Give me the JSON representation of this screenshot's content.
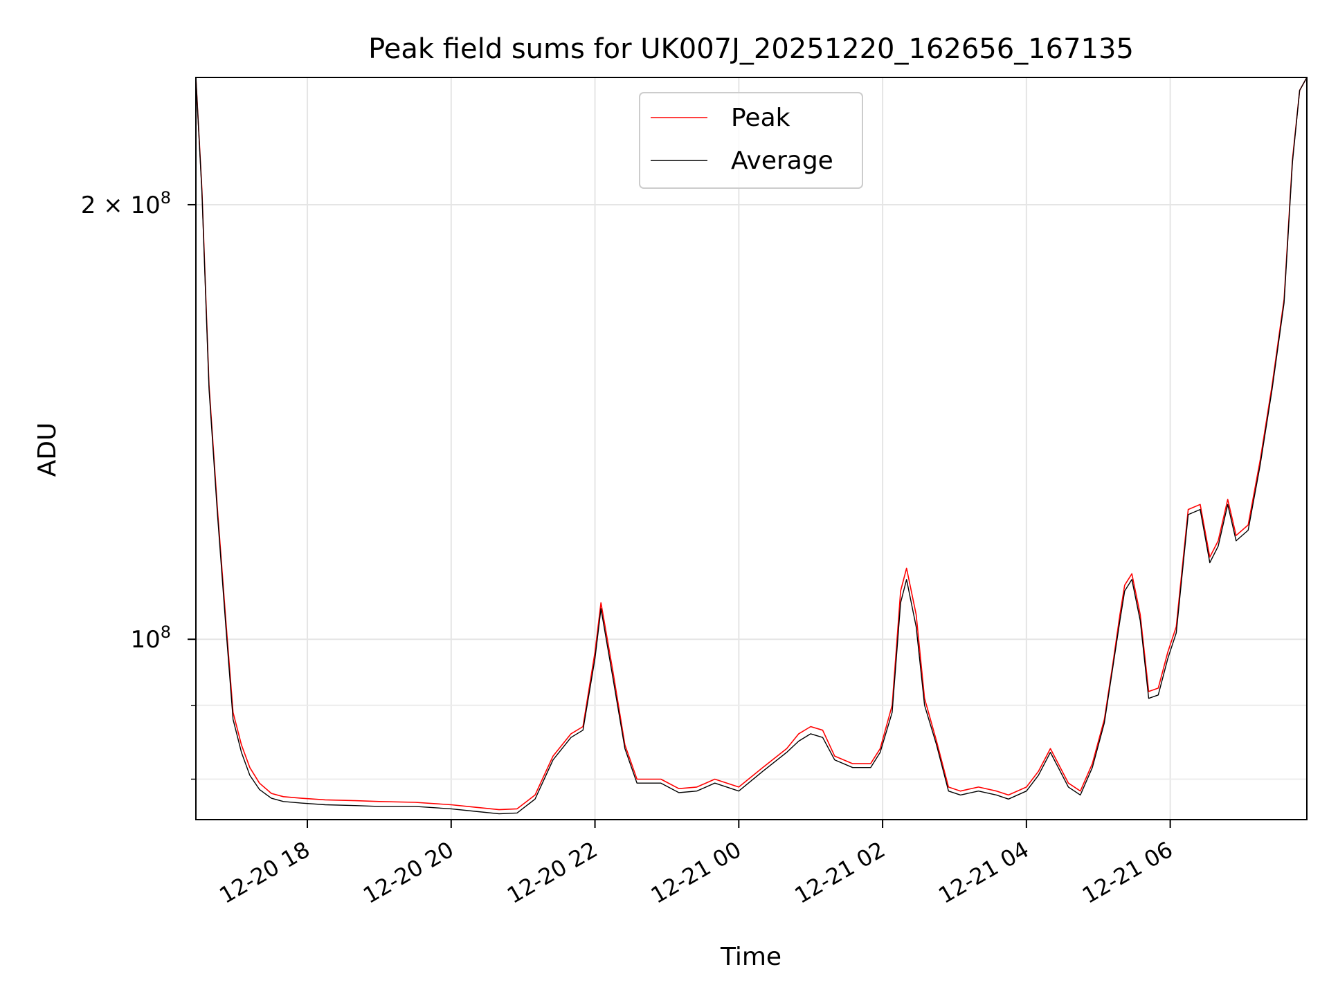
{
  "chart_data": {
    "type": "line",
    "title": "Peak field sums for UK007J_20251220_162656_167135",
    "xlabel": "Time",
    "ylabel": "ADU",
    "y_scale": "log",
    "ylim": [
      75000000,
      245000000
    ],
    "xlim": [
      "2025-12-20 16:27",
      "2025-12-21 07:54"
    ],
    "grid": true,
    "legend_position": "upper center",
    "x_ticks": [
      {
        "t": "2025-12-20 18:00",
        "label": "12-20 18"
      },
      {
        "t": "2025-12-20 20:00",
        "label": "12-20 20"
      },
      {
        "t": "2025-12-20 22:00",
        "label": "12-20 22"
      },
      {
        "t": "2025-12-21 00:00",
        "label": "12-21 00"
      },
      {
        "t": "2025-12-21 02:00",
        "label": "12-21 02"
      },
      {
        "t": "2025-12-21 04:00",
        "label": "12-21 04"
      },
      {
        "t": "2025-12-21 06:00",
        "label": "12-21 06"
      }
    ],
    "y_ticks": [
      {
        "v": 100000000,
        "label": "10",
        "sup": "8",
        "prefix": ""
      },
      {
        "v": 200000000,
        "label": "2 × 10",
        "sup": "8",
        "prefix": ""
      }
    ],
    "y_minor_ticks": [
      80000000,
      90000000
    ],
    "series": [
      {
        "name": "Peak",
        "color": "#ff0000",
        "x": [
          "2025-12-20 16:27",
          "2025-12-20 16:32",
          "2025-12-20 16:38",
          "2025-12-20 16:45",
          "2025-12-20 16:52",
          "2025-12-20 16:58",
          "2025-12-20 17:05",
          "2025-12-20 17:12",
          "2025-12-20 17:20",
          "2025-12-20 17:30",
          "2025-12-20 17:40",
          "2025-12-20 17:55",
          "2025-12-20 18:15",
          "2025-12-20 18:40",
          "2025-12-20 19:00",
          "2025-12-20 19:30",
          "2025-12-20 20:00",
          "2025-12-20 20:20",
          "2025-12-20 20:40",
          "2025-12-20 20:55",
          "2025-12-20 21:10",
          "2025-12-20 21:25",
          "2025-12-20 21:40",
          "2025-12-20 21:50",
          "2025-12-20 22:00",
          "2025-12-20 22:05",
          "2025-12-20 22:15",
          "2025-12-20 22:25",
          "2025-12-20 22:35",
          "2025-12-20 22:55",
          "2025-12-20 23:10",
          "2025-12-20 23:25",
          "2025-12-20 23:40",
          "2025-12-21 00:00",
          "2025-12-21 00:20",
          "2025-12-21 00:40",
          "2025-12-21 00:50",
          "2025-12-21 01:00",
          "2025-12-21 01:10",
          "2025-12-21 01:20",
          "2025-12-21 01:35",
          "2025-12-21 01:50",
          "2025-12-21 01:58",
          "2025-12-21 02:08",
          "2025-12-21 02:15",
          "2025-12-21 02:20",
          "2025-12-21 02:28",
          "2025-12-21 02:35",
          "2025-12-21 02:45",
          "2025-12-21 02:55",
          "2025-12-21 03:05",
          "2025-12-21 03:20",
          "2025-12-21 03:35",
          "2025-12-21 03:45",
          "2025-12-21 04:00",
          "2025-12-21 04:10",
          "2025-12-21 04:20",
          "2025-12-21 04:35",
          "2025-12-21 04:45",
          "2025-12-21 04:55",
          "2025-12-21 05:05",
          "2025-12-21 05:12",
          "2025-12-21 05:18",
          "2025-12-21 05:22",
          "2025-12-21 05:28",
          "2025-12-21 05:35",
          "2025-12-21 05:42",
          "2025-12-21 05:50",
          "2025-12-21 05:58",
          "2025-12-21 06:05",
          "2025-12-21 06:15",
          "2025-12-21 06:25",
          "2025-12-21 06:33",
          "2025-12-21 06:40",
          "2025-12-21 06:48",
          "2025-12-21 06:55",
          "2025-12-21 07:05",
          "2025-12-21 07:15",
          "2025-12-21 07:25",
          "2025-12-21 07:35",
          "2025-12-21 07:42",
          "2025-12-21 07:48",
          "2025-12-21 07:54"
        ],
        "values": [
          245000000,
          205000000,
          150000000,
          123000000,
          103000000,
          89000000,
          84500000,
          81500000,
          79500000,
          78200000,
          77800000,
          77600000,
          77400000,
          77300000,
          77200000,
          77100000,
          76800000,
          76500000,
          76200000,
          76300000,
          78000000,
          83000000,
          86000000,
          87000000,
          98000000,
          106000000,
          95000000,
          84500000,
          80000000,
          80000000,
          78800000,
          79000000,
          80000000,
          79000000,
          81500000,
          84000000,
          86000000,
          87000000,
          86500000,
          83000000,
          82000000,
          82000000,
          84000000,
          90000000,
          108000000,
          112000000,
          104000000,
          91000000,
          85000000,
          79000000,
          78500000,
          79000000,
          78500000,
          78000000,
          79000000,
          81000000,
          84000000,
          79500000,
          78500000,
          82000000,
          88000000,
          96000000,
          104000000,
          109000000,
          111000000,
          104000000,
          92000000,
          92500000,
          98000000,
          102000000,
          123000000,
          124000000,
          114000000,
          117000000,
          125000000,
          118000000,
          120000000,
          133000000,
          150000000,
          172000000,
          215000000,
          240000000,
          245000000
        ]
      },
      {
        "name": "Average",
        "color": "#000000",
        "x": [
          "2025-12-20 16:27",
          "2025-12-20 16:32",
          "2025-12-20 16:38",
          "2025-12-20 16:45",
          "2025-12-20 16:52",
          "2025-12-20 16:58",
          "2025-12-20 17:05",
          "2025-12-20 17:12",
          "2025-12-20 17:20",
          "2025-12-20 17:30",
          "2025-12-20 17:40",
          "2025-12-20 17:55",
          "2025-12-20 18:15",
          "2025-12-20 18:40",
          "2025-12-20 19:00",
          "2025-12-20 19:30",
          "2025-12-20 20:00",
          "2025-12-20 20:20",
          "2025-12-20 20:40",
          "2025-12-20 20:55",
          "2025-12-20 21:10",
          "2025-12-20 21:25",
          "2025-12-20 21:40",
          "2025-12-20 21:50",
          "2025-12-20 22:00",
          "2025-12-20 22:05",
          "2025-12-20 22:15",
          "2025-12-20 22:25",
          "2025-12-20 22:35",
          "2025-12-20 22:55",
          "2025-12-20 23:10",
          "2025-12-20 23:25",
          "2025-12-20 23:40",
          "2025-12-21 00:00",
          "2025-12-21 00:20",
          "2025-12-21 00:40",
          "2025-12-21 00:50",
          "2025-12-21 01:00",
          "2025-12-21 01:10",
          "2025-12-21 01:20",
          "2025-12-21 01:35",
          "2025-12-21 01:50",
          "2025-12-21 01:58",
          "2025-12-21 02:08",
          "2025-12-21 02:15",
          "2025-12-21 02:20",
          "2025-12-21 02:28",
          "2025-12-21 02:35",
          "2025-12-21 02:45",
          "2025-12-21 02:55",
          "2025-12-21 03:05",
          "2025-12-21 03:20",
          "2025-12-21 03:35",
          "2025-12-21 03:45",
          "2025-12-21 04:00",
          "2025-12-21 04:10",
          "2025-12-21 04:20",
          "2025-12-21 04:35",
          "2025-12-21 04:45",
          "2025-12-21 04:55",
          "2025-12-21 05:05",
          "2025-12-21 05:12",
          "2025-12-21 05:18",
          "2025-12-21 05:22",
          "2025-12-21 05:28",
          "2025-12-21 05:35",
          "2025-12-21 05:42",
          "2025-12-21 05:50",
          "2025-12-21 05:58",
          "2025-12-21 06:05",
          "2025-12-21 06:15",
          "2025-12-21 06:25",
          "2025-12-21 06:33",
          "2025-12-21 06:40",
          "2025-12-21 06:48",
          "2025-12-21 06:55",
          "2025-12-21 07:05",
          "2025-12-21 07:15",
          "2025-12-21 07:25",
          "2025-12-21 07:35",
          "2025-12-21 07:42",
          "2025-12-21 07:48",
          "2025-12-21 07:54"
        ],
        "values": [
          245000000,
          204000000,
          149000000,
          122000000,
          102000000,
          88000000,
          83500000,
          80500000,
          78700000,
          77600000,
          77200000,
          77000000,
          76800000,
          76700000,
          76600000,
          76600000,
          76300000,
          76000000,
          75700000,
          75800000,
          77500000,
          82500000,
          85500000,
          86500000,
          97000000,
          105000000,
          94000000,
          84000000,
          79500000,
          79500000,
          78300000,
          78500000,
          79500000,
          78500000,
          81000000,
          83500000,
          85000000,
          86000000,
          85500000,
          82500000,
          81500000,
          81500000,
          83500000,
          89000000,
          106000000,
          110000000,
          102000000,
          90000000,
          84500000,
          78500000,
          78000000,
          78500000,
          78000000,
          77500000,
          78500000,
          80500000,
          83500000,
          79000000,
          78000000,
          81500000,
          87500000,
          95500000,
          103000000,
          108000000,
          110000000,
          103000000,
          91000000,
          91500000,
          97000000,
          101000000,
          122000000,
          123000000,
          113000000,
          116000000,
          124000000,
          117000000,
          119000000,
          132000000,
          149000000,
          171000000,
          214000000,
          240000000,
          245000000
        ]
      }
    ]
  }
}
